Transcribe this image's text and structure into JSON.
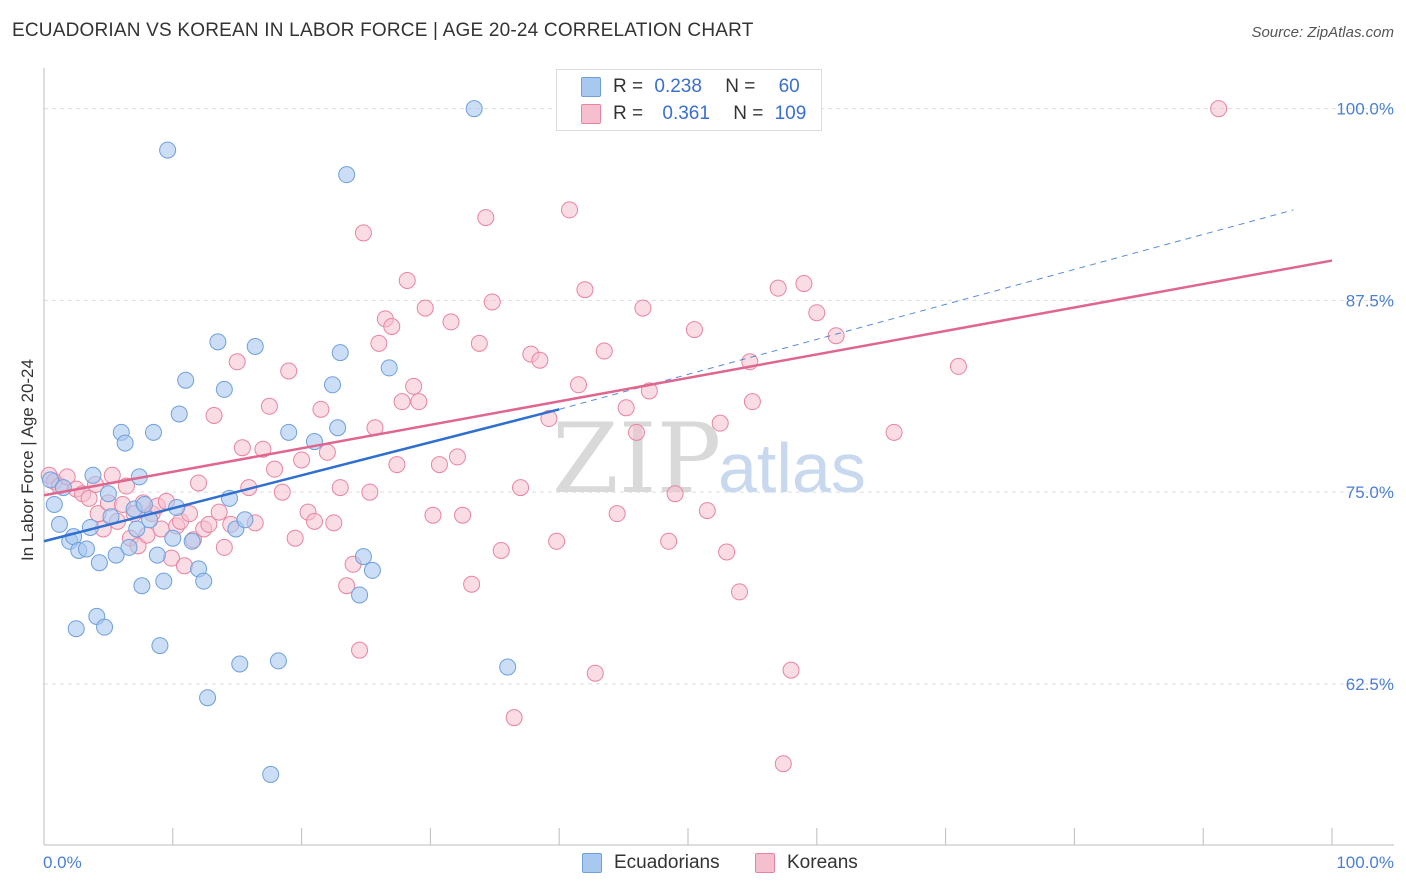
{
  "title": "ECUADORIAN VS KOREAN IN LABOR FORCE | AGE 20-24 CORRELATION CHART",
  "source": "Source: ZipAtlas.com",
  "watermark": {
    "zip": "ZIP",
    "atlas": "atlas"
  },
  "legend": {
    "r_label": "R =",
    "n_label": "N =",
    "series1": {
      "r": "0.238",
      "n": "60"
    },
    "series2": {
      "r": "0.361",
      "n": "109"
    }
  },
  "bottom_legend": {
    "series1": "Ecuadorians",
    "series2": "Koreans"
  },
  "colors": {
    "blue_fill": "#a9c8f0",
    "blue_stroke": "#6f9fdc",
    "blue_line": "#2f6fd0",
    "pink_fill": "#f6bfd0",
    "pink_stroke": "#e9849f",
    "pink_line": "#e0658f",
    "grid": "#dddddd",
    "axis_text": "#4a7fd4"
  },
  "chart_data": {
    "type": "scatter",
    "title": "ECUADORIAN VS KOREAN IN LABOR FORCE | AGE 20-24 CORRELATION CHART",
    "xlabel": "",
    "ylabel": "In Labor Force | Age 20-24",
    "xlim": [
      0,
      100
    ],
    "ylim": [
      52.0,
      102.0
    ],
    "x_tick_labels": [
      "0.0%",
      "100.0%"
    ],
    "y_ticks": [
      62.5,
      75.0,
      87.5,
      100.0
    ],
    "y_tick_labels": [
      "62.5%",
      "75.0%",
      "87.5%",
      "100.0%"
    ],
    "grid": true,
    "series": [
      {
        "name": "Ecuadorians",
        "r": 0.238,
        "n": 60,
        "trend": {
          "x1": 0,
          "y1": 71.8,
          "x2": 40,
          "y2": 80.4,
          "dash_x2": 97,
          "dash_y2": 93.4
        },
        "points": [
          [
            0.5,
            75.8
          ],
          [
            0.8,
            74.2
          ],
          [
            1.2,
            72.9
          ],
          [
            1.5,
            75.3
          ],
          [
            2.0,
            71.8
          ],
          [
            2.3,
            72.1
          ],
          [
            2.5,
            66.1
          ],
          [
            2.7,
            71.2
          ],
          [
            3.3,
            71.3
          ],
          [
            3.6,
            72.7
          ],
          [
            3.8,
            76.1
          ],
          [
            4.1,
            66.9
          ],
          [
            4.3,
            70.4
          ],
          [
            4.7,
            66.2
          ],
          [
            5.0,
            74.9
          ],
          [
            5.2,
            73.4
          ],
          [
            5.6,
            70.9
          ],
          [
            6.0,
            78.9
          ],
          [
            6.3,
            78.2
          ],
          [
            6.6,
            71.4
          ],
          [
            7.0,
            73.9
          ],
          [
            7.2,
            72.6
          ],
          [
            7.4,
            76.0
          ],
          [
            7.6,
            68.9
          ],
          [
            7.8,
            74.2
          ],
          [
            8.2,
            73.2
          ],
          [
            8.5,
            78.9
          ],
          [
            8.8,
            70.9
          ],
          [
            9.0,
            65.0
          ],
          [
            9.3,
            69.2
          ],
          [
            9.6,
            97.3
          ],
          [
            10.0,
            72.0
          ],
          [
            10.3,
            74.0
          ],
          [
            10.5,
            80.1
          ],
          [
            11.0,
            82.3
          ],
          [
            11.5,
            71.8
          ],
          [
            12.0,
            70.0
          ],
          [
            12.4,
            69.2
          ],
          [
            12.7,
            61.6
          ],
          [
            13.5,
            84.8
          ],
          [
            14.0,
            81.7
          ],
          [
            14.4,
            74.6
          ],
          [
            14.9,
            72.6
          ],
          [
            15.2,
            63.8
          ],
          [
            15.6,
            73.2
          ],
          [
            16.4,
            84.5
          ],
          [
            17.6,
            56.6
          ],
          [
            18.2,
            64.0
          ],
          [
            19.0,
            78.9
          ],
          [
            21.0,
            78.3
          ],
          [
            22.4,
            82.0
          ],
          [
            22.8,
            79.2
          ],
          [
            23.0,
            84.1
          ],
          [
            23.5,
            95.7
          ],
          [
            24.5,
            68.3
          ],
          [
            24.8,
            70.8
          ],
          [
            25.5,
            69.9
          ],
          [
            26.8,
            83.1
          ],
          [
            33.4,
            100.0
          ],
          [
            36.0,
            63.6
          ]
        ]
      },
      {
        "name": "Koreans",
        "r": 0.361,
        "n": 109,
        "trend": {
          "x1": 0,
          "y1": 74.8,
          "x2": 100,
          "y2": 90.1
        },
        "points": [
          [
            0.4,
            76.1
          ],
          [
            0.8,
            75.7
          ],
          [
            1.2,
            75.4
          ],
          [
            1.8,
            76.0
          ],
          [
            2.5,
            75.2
          ],
          [
            3.0,
            74.9
          ],
          [
            3.5,
            74.6
          ],
          [
            4.0,
            75.5
          ],
          [
            4.2,
            73.6
          ],
          [
            4.6,
            72.6
          ],
          [
            5.0,
            74.3
          ],
          [
            5.3,
            76.1
          ],
          [
            5.7,
            73.1
          ],
          [
            6.1,
            74.2
          ],
          [
            6.4,
            75.4
          ],
          [
            6.7,
            72.0
          ],
          [
            7.0,
            73.6
          ],
          [
            7.3,
            71.5
          ],
          [
            7.7,
            74.3
          ],
          [
            8.0,
            72.2
          ],
          [
            8.4,
            73.6
          ],
          [
            8.8,
            74.1
          ],
          [
            9.1,
            72.6
          ],
          [
            9.5,
            74.4
          ],
          [
            9.9,
            70.7
          ],
          [
            10.3,
            72.8
          ],
          [
            10.6,
            73.1
          ],
          [
            10.9,
            70.2
          ],
          [
            11.3,
            73.6
          ],
          [
            11.6,
            71.9
          ],
          [
            12.0,
            75.6
          ],
          [
            12.4,
            72.6
          ],
          [
            12.8,
            72.9
          ],
          [
            13.2,
            80.0
          ],
          [
            13.6,
            73.7
          ],
          [
            14.0,
            71.4
          ],
          [
            14.5,
            72.9
          ],
          [
            15.0,
            83.5
          ],
          [
            15.4,
            77.9
          ],
          [
            15.9,
            75.3
          ],
          [
            16.4,
            73.0
          ],
          [
            17.0,
            77.8
          ],
          [
            17.5,
            80.6
          ],
          [
            17.9,
            76.5
          ],
          [
            18.5,
            75.0
          ],
          [
            19.0,
            82.9
          ],
          [
            19.5,
            72.0
          ],
          [
            20.0,
            77.1
          ],
          [
            20.5,
            73.7
          ],
          [
            21.0,
            73.1
          ],
          [
            21.5,
            80.4
          ],
          [
            22.0,
            77.6
          ],
          [
            22.5,
            73.0
          ],
          [
            23.0,
            75.3
          ],
          [
            23.5,
            68.9
          ],
          [
            24.0,
            70.3
          ],
          [
            24.5,
            64.7
          ],
          [
            24.8,
            91.9
          ],
          [
            25.3,
            75.0
          ],
          [
            25.7,
            79.2
          ],
          [
            26.0,
            84.7
          ],
          [
            26.5,
            86.3
          ],
          [
            27.0,
            85.8
          ],
          [
            27.4,
            76.8
          ],
          [
            27.8,
            80.9
          ],
          [
            28.2,
            88.8
          ],
          [
            28.7,
            81.9
          ],
          [
            29.1,
            80.9
          ],
          [
            29.6,
            87.0
          ],
          [
            30.2,
            73.5
          ],
          [
            30.7,
            76.8
          ],
          [
            31.6,
            86.1
          ],
          [
            32.1,
            77.3
          ],
          [
            32.5,
            73.5
          ],
          [
            33.2,
            69.0
          ],
          [
            33.8,
            84.7
          ],
          [
            34.3,
            92.9
          ],
          [
            34.8,
            87.4
          ],
          [
            35.5,
            71.2
          ],
          [
            36.5,
            60.3
          ],
          [
            37.0,
            75.3
          ],
          [
            37.8,
            84.0
          ],
          [
            38.5,
            83.6
          ],
          [
            39.2,
            79.8
          ],
          [
            39.8,
            71.8
          ],
          [
            40.8,
            93.4
          ],
          [
            41.5,
            82.0
          ],
          [
            42.0,
            88.2
          ],
          [
            42.8,
            63.2
          ],
          [
            43.5,
            84.2
          ],
          [
            44.5,
            73.6
          ],
          [
            45.2,
            80.5
          ],
          [
            46.0,
            78.9
          ],
          [
            46.5,
            87.0
          ],
          [
            47.0,
            81.6
          ],
          [
            48.5,
            71.8
          ],
          [
            49.0,
            74.9
          ],
          [
            50.5,
            85.6
          ],
          [
            51.5,
            73.8
          ],
          [
            52.5,
            79.5
          ],
          [
            53.0,
            71.1
          ],
          [
            54.0,
            68.5
          ],
          [
            55.0,
            80.9
          ],
          [
            57.0,
            88.3
          ],
          [
            58.0,
            63.4
          ],
          [
            59.0,
            88.6
          ],
          [
            60.0,
            86.7
          ],
          [
            61.5,
            85.2
          ],
          [
            66.0,
            78.9
          ],
          [
            71.0,
            83.2
          ],
          [
            91.2,
            100.0
          ],
          [
            57.4,
            57.3
          ],
          [
            54.8,
            83.5
          ]
        ]
      }
    ]
  }
}
